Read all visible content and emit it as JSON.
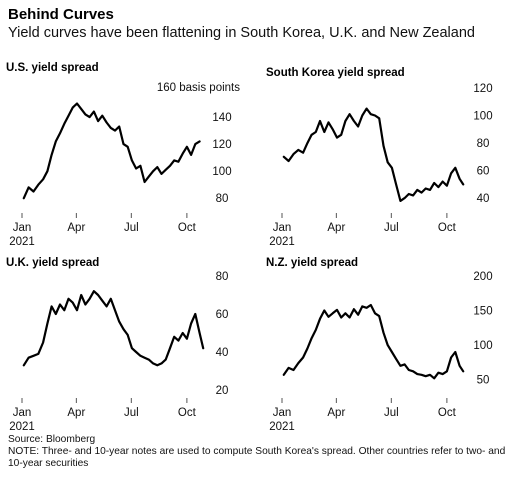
{
  "header": {
    "title": "Behind Curves",
    "subtitle": "Yield curves have been flattening in South Korea, U.K. and New Zealand"
  },
  "footer": {
    "source": "Source: Bloomberg",
    "note": "NOTE: Three- and 10-year notes are used to compute South Korea's spread. Other countries refer to two- and 10-year securities"
  },
  "colors": {
    "line": "#000000",
    "text": "#111111",
    "tick": "#555555"
  },
  "chart_data": [
    {
      "type": "line",
      "title": "U.S. yield spread",
      "unit_label": "160 basis points",
      "x_ticks": [
        "Jan",
        "Apr",
        "Jul",
        "Oct"
      ],
      "x_year": "2021",
      "y_ticks": [
        80,
        100,
        120,
        140
      ],
      "ylim": [
        75,
        160
      ],
      "xlim": [
        "2021-01-01",
        "2021-10-31"
      ],
      "x": [
        "2021-01-04",
        "2021-01-12",
        "2021-01-20",
        "2021-01-28",
        "2021-02-05",
        "2021-02-12",
        "2021-02-19",
        "2021-02-26",
        "2021-03-05",
        "2021-03-12",
        "2021-03-19",
        "2021-03-26",
        "2021-04-02",
        "2021-04-09",
        "2021-04-16",
        "2021-04-23",
        "2021-04-30",
        "2021-05-07",
        "2021-05-14",
        "2021-05-21",
        "2021-05-28",
        "2021-06-04",
        "2021-06-11",
        "2021-06-18",
        "2021-06-25",
        "2021-07-02",
        "2021-07-09",
        "2021-07-16",
        "2021-07-23",
        "2021-07-30",
        "2021-08-06",
        "2021-08-13",
        "2021-08-20",
        "2021-08-27",
        "2021-09-03",
        "2021-09-10",
        "2021-09-17",
        "2021-09-24",
        "2021-10-01",
        "2021-10-08",
        "2021-10-15",
        "2021-10-22"
      ],
      "series": [
        {
          "values": [
            80,
            88,
            85,
            90,
            94,
            100,
            112,
            122,
            128,
            135,
            141,
            147,
            150,
            146,
            142,
            140,
            144,
            137,
            141,
            136,
            132,
            130,
            133,
            120,
            118,
            108,
            102,
            104,
            92,
            96,
            100,
            103,
            98,
            101,
            104,
            108,
            107,
            113,
            118,
            112,
            120,
            122
          ]
        }
      ]
    },
    {
      "type": "line",
      "title": "South Korea yield spread",
      "x_ticks": [
        "Jan",
        "Apr",
        "Jul",
        "Oct"
      ],
      "x_year": "2021",
      "y_ticks": [
        40,
        60,
        80,
        100,
        120
      ],
      "ylim": [
        35,
        120
      ],
      "xlim": [
        "2021-01-01",
        "2021-10-31"
      ],
      "x": [
        "2021-01-04",
        "2021-01-12",
        "2021-01-20",
        "2021-01-28",
        "2021-02-05",
        "2021-02-12",
        "2021-02-19",
        "2021-02-26",
        "2021-03-05",
        "2021-03-12",
        "2021-03-19",
        "2021-03-26",
        "2021-04-02",
        "2021-04-09",
        "2021-04-16",
        "2021-04-23",
        "2021-04-30",
        "2021-05-07",
        "2021-05-14",
        "2021-05-21",
        "2021-05-28",
        "2021-06-04",
        "2021-06-11",
        "2021-06-18",
        "2021-06-25",
        "2021-07-02",
        "2021-07-09",
        "2021-07-16",
        "2021-07-23",
        "2021-07-30",
        "2021-08-06",
        "2021-08-13",
        "2021-08-20",
        "2021-08-27",
        "2021-09-03",
        "2021-09-10",
        "2021-09-17",
        "2021-09-24",
        "2021-10-01",
        "2021-10-08",
        "2021-10-15",
        "2021-10-22",
        "2021-10-28"
      ],
      "series": [
        {
          "values": [
            70,
            67,
            72,
            75,
            73,
            80,
            86,
            88,
            96,
            88,
            95,
            90,
            84,
            86,
            96,
            101,
            96,
            92,
            100,
            105,
            101,
            100,
            98,
            78,
            66,
            62,
            50,
            38,
            40,
            43,
            42,
            46,
            44,
            47,
            46,
            51,
            48,
            52,
            49,
            58,
            62,
            54,
            50
          ]
        }
      ]
    },
    {
      "type": "line",
      "title": "U.K. yield spread",
      "x_ticks": [
        "Jan",
        "Apr",
        "Jul",
        "Oct"
      ],
      "x_year": "2021",
      "y_ticks": [
        20,
        40,
        60,
        80
      ],
      "ylim": [
        20,
        80
      ],
      "xlim": [
        "2021-01-01",
        "2021-10-31"
      ],
      "x": [
        "2021-01-04",
        "2021-01-12",
        "2021-01-20",
        "2021-01-28",
        "2021-02-05",
        "2021-02-12",
        "2021-02-19",
        "2021-02-26",
        "2021-03-05",
        "2021-03-12",
        "2021-03-19",
        "2021-03-26",
        "2021-04-02",
        "2021-04-09",
        "2021-04-16",
        "2021-04-23",
        "2021-04-30",
        "2021-05-07",
        "2021-05-14",
        "2021-05-21",
        "2021-05-28",
        "2021-06-04",
        "2021-06-11",
        "2021-06-18",
        "2021-06-25",
        "2021-07-02",
        "2021-07-09",
        "2021-07-16",
        "2021-07-23",
        "2021-07-30",
        "2021-08-06",
        "2021-08-13",
        "2021-08-20",
        "2021-08-27",
        "2021-09-03",
        "2021-09-10",
        "2021-09-17",
        "2021-09-24",
        "2021-10-01",
        "2021-10-08",
        "2021-10-15",
        "2021-10-22",
        "2021-10-28"
      ],
      "series": [
        {
          "values": [
            33,
            37,
            38,
            39,
            45,
            55,
            64,
            60,
            65,
            62,
            68,
            66,
            62,
            70,
            65,
            68,
            72,
            70,
            67,
            64,
            68,
            62,
            56,
            52,
            49,
            42,
            40,
            38,
            37,
            36,
            34,
            33,
            34,
            36,
            42,
            48,
            46,
            50,
            47,
            55,
            60,
            50,
            42
          ]
        }
      ]
    },
    {
      "type": "line",
      "title": "N.Z. yield spread",
      "x_ticks": [
        "Jan",
        "Apr",
        "Jul",
        "Oct"
      ],
      "x_year": "2021",
      "y_ticks": [
        50,
        100,
        150,
        200
      ],
      "ylim": [
        35,
        200
      ],
      "xlim": [
        "2021-01-01",
        "2021-10-31"
      ],
      "x": [
        "2021-01-04",
        "2021-01-12",
        "2021-01-20",
        "2021-01-28",
        "2021-02-05",
        "2021-02-12",
        "2021-02-19",
        "2021-02-26",
        "2021-03-05",
        "2021-03-12",
        "2021-03-19",
        "2021-03-26",
        "2021-04-02",
        "2021-04-09",
        "2021-04-16",
        "2021-04-23",
        "2021-04-30",
        "2021-05-07",
        "2021-05-14",
        "2021-05-21",
        "2021-05-28",
        "2021-06-04",
        "2021-06-11",
        "2021-06-18",
        "2021-06-25",
        "2021-07-02",
        "2021-07-09",
        "2021-07-16",
        "2021-07-23",
        "2021-07-30",
        "2021-08-06",
        "2021-08-13",
        "2021-08-20",
        "2021-08-27",
        "2021-09-03",
        "2021-09-10",
        "2021-09-17",
        "2021-09-24",
        "2021-10-01",
        "2021-10-08",
        "2021-10-15",
        "2021-10-22",
        "2021-10-28"
      ],
      "series": [
        {
          "values": [
            57,
            67,
            64,
            74,
            82,
            95,
            110,
            122,
            138,
            150,
            141,
            146,
            151,
            140,
            146,
            140,
            152,
            144,
            156,
            154,
            158,
            146,
            142,
            118,
            100,
            90,
            80,
            70,
            72,
            64,
            62,
            58,
            57,
            55,
            57,
            52,
            60,
            58,
            62,
            82,
            90,
            70,
            62
          ]
        }
      ]
    }
  ]
}
